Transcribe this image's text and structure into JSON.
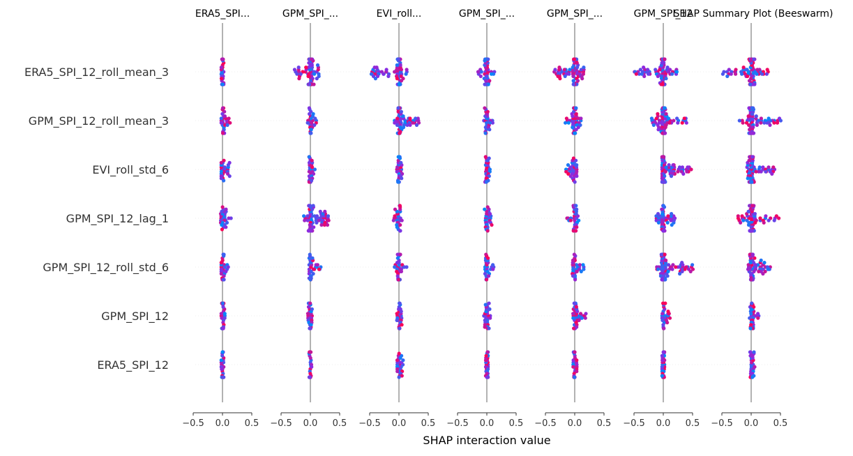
{
  "chart_data": {
    "type": "scatter",
    "subtype": "beeswarm-interaction-grid",
    "title": "SHAP Summary Plot (Beeswarm)",
    "xlabel": "SHAP interaction value",
    "xlim": [
      -0.5,
      0.5
    ],
    "xticks": [
      -0.5,
      0.0,
      0.5
    ],
    "xtick_labels": [
      "−0.5",
      "0.0",
      "0.5"
    ],
    "feature_colormap": {
      "low": "#008bfb",
      "mid": "#8a2be2",
      "high": "#ff0052"
    },
    "zero_line_color": "#999999",
    "row_guides": "dotted, light gray",
    "features": [
      "ERA5_SPI_12_roll_mean_3",
      "GPM_SPI_12_roll_mean_3",
      "EVI_roll_std_6",
      "GPM_SPI_12_lag_1",
      "GPM_SPI_12_roll_std_6",
      "GPM_SPI_12",
      "ERA5_SPI_12"
    ],
    "columns": [
      {
        "title": "ERA5_SPI...",
        "spreads": [
          [
            -0.02,
            0.02
          ],
          [
            -0.02,
            0.15
          ],
          [
            -0.02,
            0.14
          ],
          [
            -0.03,
            0.15
          ],
          [
            -0.02,
            0.1
          ],
          [
            -0.02,
            0.07
          ],
          [
            -0.02,
            0.02
          ]
        ]
      },
      {
        "title": "GPM_SPI_...",
        "spreads": [
          [
            -0.28,
            0.16
          ],
          [
            -0.05,
            0.1
          ],
          [
            -0.02,
            0.08
          ],
          [
            -0.12,
            0.32
          ],
          [
            -0.02,
            0.18
          ],
          [
            -0.05,
            0.06
          ],
          [
            -0.02,
            0.02
          ]
        ]
      },
      {
        "title": "EVI_roll...",
        "spreads": [
          [
            -0.48,
            0.14
          ],
          [
            -0.08,
            0.34
          ],
          [
            -0.04,
            0.06
          ],
          [
            -0.1,
            0.05
          ],
          [
            -0.08,
            0.14
          ],
          [
            -0.04,
            0.06
          ],
          [
            -0.03,
            0.08
          ]
        ]
      },
      {
        "title": "GPM_SPI_...",
        "spreads": [
          [
            -0.18,
            0.14
          ],
          [
            -0.06,
            0.1
          ],
          [
            -0.03,
            0.06
          ],
          [
            -0.05,
            0.09
          ],
          [
            -0.03,
            0.14
          ],
          [
            -0.05,
            0.07
          ],
          [
            -0.02,
            0.02
          ]
        ]
      },
      {
        "title": "GPM_SPI_...",
        "spreads": [
          [
            -0.35,
            0.18
          ],
          [
            -0.16,
            0.12
          ],
          [
            -0.15,
            0.06
          ],
          [
            -0.15,
            0.07
          ],
          [
            -0.04,
            0.16
          ],
          [
            -0.03,
            0.22
          ],
          [
            -0.04,
            0.04
          ]
        ]
      },
      {
        "title": "GPM_SPI_12",
        "spreads": [
          [
            -0.52,
            0.24
          ],
          [
            -0.2,
            0.4
          ],
          [
            -0.02,
            0.48
          ],
          [
            -0.12,
            0.2
          ],
          [
            -0.12,
            0.52
          ],
          [
            -0.02,
            0.12
          ],
          [
            -0.02,
            0.02
          ]
        ]
      },
      {
        "title": "",
        "spreads": [
          [
            -0.52,
            0.32
          ],
          [
            -0.2,
            0.52
          ],
          [
            -0.08,
            0.4
          ],
          [
            -0.26,
            0.48
          ],
          [
            -0.06,
            0.34
          ],
          [
            -0.06,
            0.14
          ],
          [
            -0.02,
            0.06
          ]
        ]
      }
    ]
  }
}
